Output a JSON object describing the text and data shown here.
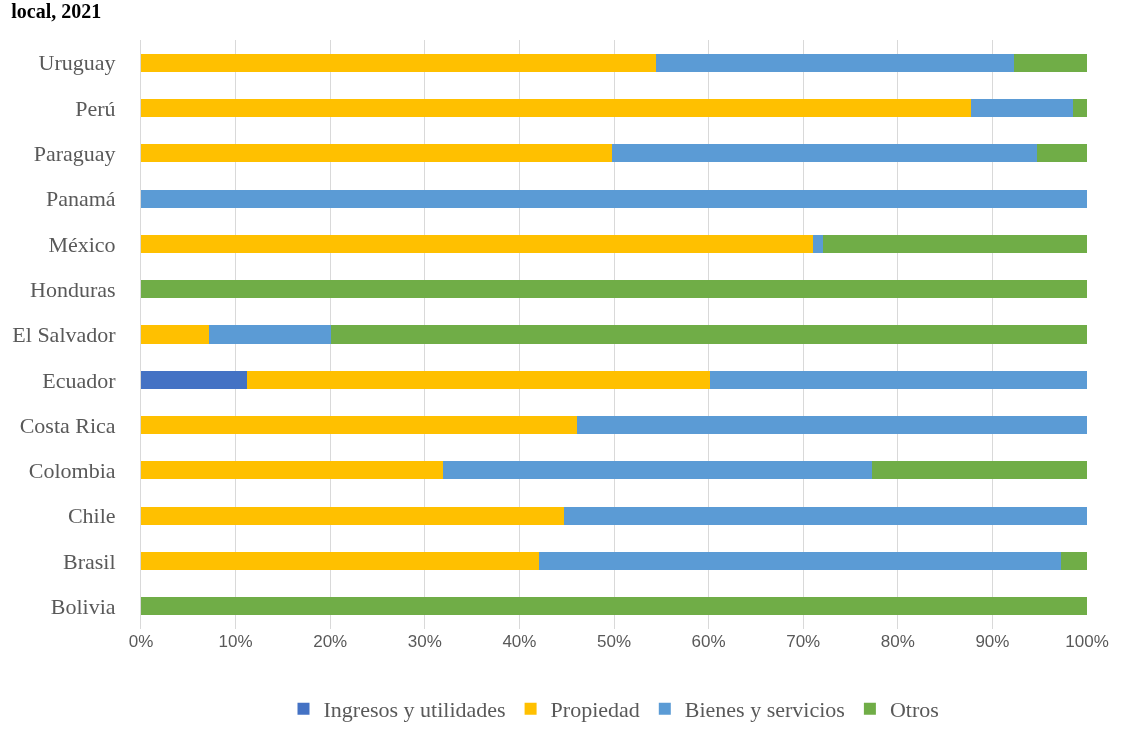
{
  "chart_data": {
    "type": "bar",
    "orientation": "horizontal",
    "stacked": true,
    "title": "local, 2021",
    "categories": [
      "Uruguay",
      "Perú",
      "Paraguay",
      "Panamá",
      "México",
      "Honduras",
      "El Salvador",
      "Ecuador",
      "Costa Rica",
      "Colombia",
      "Chile",
      "Brasil",
      "Bolivia"
    ],
    "series": [
      {
        "name": "Ingresos y utilidades",
        "color": "#4472c4",
        "values": [
          0,
          0,
          0,
          0,
          0,
          0,
          0,
          11.2,
          0,
          0,
          0,
          0,
          0
        ]
      },
      {
        "name": "Propiedad",
        "color": "#ffc000",
        "values": [
          54.4,
          87.7,
          49.8,
          0,
          71.0,
          0,
          7.2,
          48.9,
          46.1,
          31.9,
          44.7,
          42.1,
          0
        ]
      },
      {
        "name": "Bienes y servicios",
        "color": "#5b9bd5",
        "values": [
          37.9,
          10.8,
          44.9,
          100,
          1.1,
          0,
          12.9,
          39.9,
          53.9,
          45.4,
          55.3,
          55.1,
          0
        ]
      },
      {
        "name": "Otros",
        "color": "#70ad47",
        "values": [
          7.7,
          1.5,
          5.3,
          0,
          27.9,
          100,
          79.9,
          0,
          0,
          22.7,
          0,
          2.8,
          100
        ]
      }
    ],
    "xlim": [
      0,
      100
    ],
    "xticks": [
      {
        "value": 0,
        "label": "0%"
      },
      {
        "value": 10,
        "label": "10%"
      },
      {
        "value": 20,
        "label": "20%"
      },
      {
        "value": 30,
        "label": "30%"
      },
      {
        "value": 40,
        "label": "40%"
      },
      {
        "value": 50,
        "label": "50%"
      },
      {
        "value": 60,
        "label": "60%"
      },
      {
        "value": 70,
        "label": "70%"
      },
      {
        "value": 80,
        "label": "80%"
      },
      {
        "value": 90,
        "label": "90%"
      },
      {
        "value": 100,
        "label": "100%"
      }
    ],
    "grid": "x",
    "legend": "bottom"
  }
}
